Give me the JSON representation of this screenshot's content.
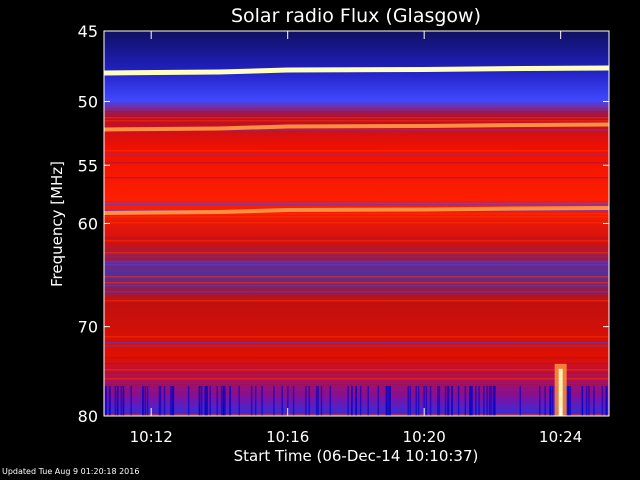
{
  "chart_data": {
    "type": "heatmap",
    "title": "Solar radio Flux (Glasgow)",
    "xlabel": "Start Time (06-Dec-14 10:10:37)",
    "ylabel": "Frequency [MHz]",
    "x_range_minutes": [
      "10:10:37",
      "10:25:25"
    ],
    "x_ticks": [
      {
        "label": "10:12",
        "minute": 12
      },
      {
        "label": "10:16",
        "minute": 16
      },
      {
        "label": "10:20",
        "minute": 20
      },
      {
        "label": "10:24",
        "minute": 24
      }
    ],
    "y_scale": "log",
    "y_range": [
      45,
      80
    ],
    "y_reversed": true,
    "y_ticks": [
      45,
      50,
      55,
      60,
      70,
      80
    ],
    "colormap": [
      "#000020",
      "#0000c0",
      "#4040ff",
      "#a01040",
      "#e00000",
      "#ff3000",
      "#ff9040",
      "#ffffc0"
    ],
    "background": "#000000",
    "emission_bands_mhz": [
      {
        "freq": 47.7,
        "intensity": "very high"
      },
      {
        "freq": 51.9,
        "intensity": "high"
      },
      {
        "freq": 58.8,
        "intensity": "high"
      }
    ],
    "burst": {
      "time": "10:24",
      "freq_range": [
        74,
        80
      ],
      "intensity": "high"
    }
  },
  "footer": {
    "updated": "Updated Tue Aug  9 01:20:18 2016"
  }
}
